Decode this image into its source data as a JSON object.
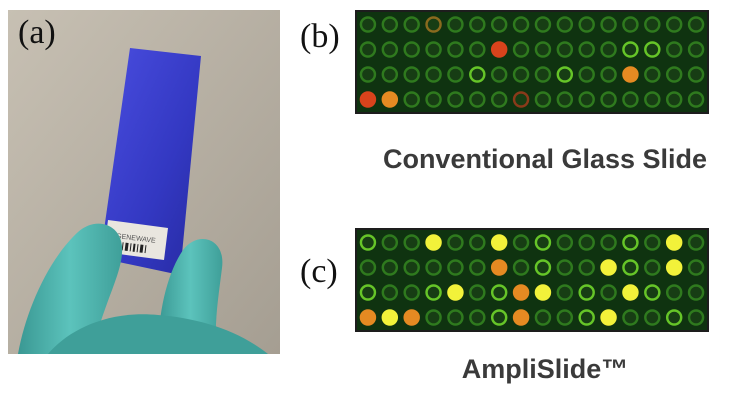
{
  "panels": {
    "a": {
      "label": "(a)",
      "barcode_text": "GENEWAVE"
    },
    "b": {
      "label": "(b)",
      "caption": "Conventional Glass Slide"
    },
    "c": {
      "label": "(c)",
      "caption": "AmpliSlide™"
    }
  },
  "colors": {
    "background": "#ffffff",
    "photo_backdrop": "#b9b2a6",
    "slide_blue": "#3a3fd0",
    "glove_teal": "#4fb3ad",
    "array_bg": "#0f3310",
    "spot_dim": "#2f7a1e",
    "spot_green": "#66c528",
    "spot_yellow": "#f2f23a",
    "spot_orange": "#e58a22",
    "spot_red": "#d8431c"
  },
  "arrays": {
    "b": {
      "rows": [
        [
          "dim",
          "dim",
          "dim",
          "orange-dim",
          "dim",
          "dim",
          "dim",
          "dim",
          "dim",
          "dim",
          "dim",
          "dim",
          "dim",
          "dim",
          "dim",
          "dim"
        ],
        [
          "dim",
          "dim",
          "dim",
          "dim",
          "dim",
          "dim",
          "red",
          "dim",
          "dim",
          "dim",
          "dim",
          "dim",
          "green",
          "green",
          "dim",
          "dim"
        ],
        [
          "dim",
          "dim",
          "dim",
          "dim",
          "dim",
          "green",
          "dim",
          "dim",
          "dim",
          "green",
          "dim",
          "dim",
          "orange",
          "dim",
          "dim",
          "dim"
        ],
        [
          "red",
          "orange",
          "dim",
          "dim",
          "dim",
          "dim",
          "dim",
          "red-dim",
          "dim",
          "dim",
          "dim",
          "dim",
          "dim",
          "dim",
          "dim",
          "dim"
        ]
      ]
    },
    "c": {
      "rows": [
        [
          "green",
          "dim",
          "dim",
          "yellow",
          "dim",
          "dim",
          "yellow",
          "dim",
          "green",
          "dim",
          "dim",
          "dim",
          "green",
          "dim",
          "yellow",
          "dim"
        ],
        [
          "dim",
          "dim",
          "dim",
          "dim",
          "dim",
          "dim",
          "orange",
          "dim",
          "green",
          "dim",
          "dim",
          "yellow",
          "green",
          "dim",
          "yellow",
          "dim"
        ],
        [
          "green",
          "dim",
          "dim",
          "green",
          "yellow",
          "dim",
          "green",
          "orange",
          "yellow",
          "dim",
          "green",
          "dim",
          "yellow",
          "green",
          "dim",
          "dim"
        ],
        [
          "orange",
          "yellow",
          "orange",
          "dim",
          "dim",
          "dim",
          "green",
          "orange",
          "dim",
          "dim",
          "green",
          "yellow",
          "dim",
          "dim",
          "green",
          "dim"
        ]
      ]
    }
  }
}
